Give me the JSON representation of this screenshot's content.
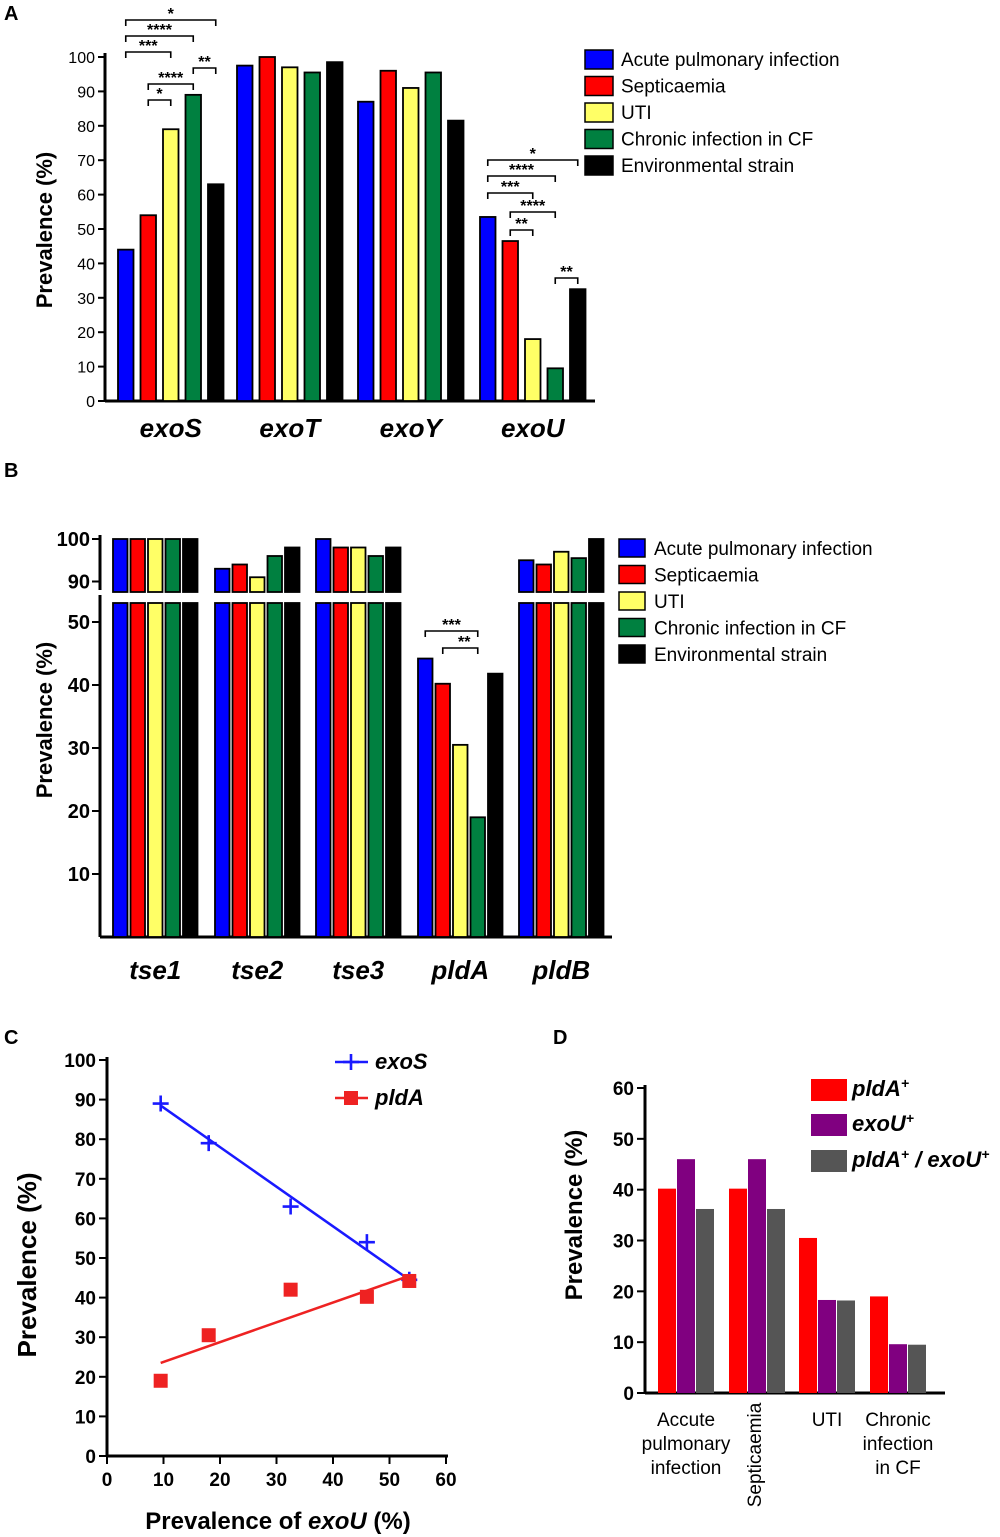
{
  "figure": {
    "panel_labels": [
      "A",
      "B",
      "C",
      "D"
    ],
    "colors": {
      "acute": "#0000ff",
      "septicaemia": "#ff0000",
      "uti": "#ffff66",
      "cf": "#008040",
      "environmental": "#000000",
      "exoS_line": "#1a1aff",
      "pldA_line": "#ee2222",
      "pldA_plus": "#ff0000",
      "exoU_plus": "#800080",
      "both": "#555555"
    }
  },
  "chart_data": [
    {
      "id": "A",
      "type": "bar",
      "title": "",
      "xlabel": "",
      "ylabel": "Prevalence (%)",
      "ylim": [
        0,
        100
      ],
      "yticks": [
        "0",
        "10",
        "20",
        "30",
        "40",
        "50",
        "60",
        "70",
        "80",
        "90",
        "100"
      ],
      "categories": [
        "exoS",
        "exoT",
        "exoY",
        "exoU"
      ],
      "series": [
        {
          "name": "Acute pulmonary infection",
          "values": [
            44,
            97.5,
            87,
            53.5
          ]
        },
        {
          "name": "Septicaemia",
          "values": [
            54,
            100,
            96,
            46.5
          ]
        },
        {
          "name": "UTI",
          "values": [
            79,
            97,
            91,
            18
          ]
        },
        {
          "name": "Chronic infection in CF",
          "values": [
            89,
            95.5,
            95.5,
            9.5
          ]
        },
        {
          "name": "Environmental strain",
          "values": [
            63,
            98.5,
            81.5,
            32.5
          ]
        }
      ],
      "significance": [
        {
          "category": "exoS",
          "from_series": 0,
          "to_series": 4,
          "label": "*"
        },
        {
          "category": "exoS",
          "from_series": 0,
          "to_series": 3,
          "label": "****"
        },
        {
          "category": "exoS",
          "from_series": 0,
          "to_series": 2,
          "label": "***"
        },
        {
          "category": "exoS",
          "from_series": 3,
          "to_series": 4,
          "label": "**"
        },
        {
          "category": "exoS",
          "from_series": 1,
          "to_series": 3,
          "label": "****"
        },
        {
          "category": "exoS",
          "from_series": 1,
          "to_series": 2,
          "label": "*"
        },
        {
          "category": "exoU",
          "from_series": 0,
          "to_series": 4,
          "label": "*"
        },
        {
          "category": "exoU",
          "from_series": 0,
          "to_series": 3,
          "label": "****"
        },
        {
          "category": "exoU",
          "from_series": 0,
          "to_series": 2,
          "label": "***"
        },
        {
          "category": "exoU",
          "from_series": 1,
          "to_series": 3,
          "label": "****"
        },
        {
          "category": "exoU",
          "from_series": 1,
          "to_series": 2,
          "label": "**"
        },
        {
          "category": "exoU",
          "from_series": 3,
          "to_series": 4,
          "label": "**"
        }
      ],
      "legend": [
        "Acute pulmonary infection",
        "Septicaemia",
        "UTI",
        "Chronic infection in CF",
        "Environmental strain"
      ]
    },
    {
      "id": "B",
      "type": "bar",
      "title": "",
      "xlabel": "",
      "ylabel": "Prevalence (%)",
      "ylim": [
        0,
        100
      ],
      "axis_break": [
        55,
        88
      ],
      "yticks": [
        "10",
        "20",
        "30",
        "40",
        "50",
        "90",
        "100"
      ],
      "categories": [
        "tse1",
        "tse2",
        "tse3",
        "pldA",
        "pldB"
      ],
      "series": [
        {
          "name": "Acute pulmonary infection",
          "values": [
            100,
            93,
            100,
            44.2,
            95
          ]
        },
        {
          "name": "Septicaemia",
          "values": [
            100,
            94,
            98,
            40.2,
            94
          ]
        },
        {
          "name": "UTI",
          "values": [
            100,
            91,
            98,
            30.5,
            97
          ]
        },
        {
          "name": "Chronic infection in CF",
          "values": [
            100,
            96,
            96,
            19,
            95.5
          ]
        },
        {
          "name": "Environmental strain",
          "values": [
            100,
            98,
            98,
            41.8,
            100
          ]
        }
      ],
      "significance": [
        {
          "category": "pldA",
          "from_series": 0,
          "to_series": 3,
          "label": "***"
        },
        {
          "category": "pldA",
          "from_series": 1,
          "to_series": 3,
          "label": "**"
        }
      ],
      "legend": [
        "Acute pulmonary infection",
        "Septicaemia",
        "UTI",
        "Chronic infection in CF",
        "Environmental strain"
      ]
    },
    {
      "id": "C",
      "type": "scatter",
      "title": "",
      "xlabel_prefix": "Prevalence of ",
      "xlabel_gene": "exoU",
      "xlabel_suffix": " (%)",
      "ylabel": "Prevalence (%)",
      "xlim": [
        0,
        60
      ],
      "ylim": [
        0,
        100
      ],
      "xticks": [
        "0",
        "10",
        "20",
        "30",
        "40",
        "50",
        "60"
      ],
      "yticks": [
        "0",
        "10",
        "20",
        "30",
        "40",
        "50",
        "60",
        "70",
        "80",
        "90",
        "100"
      ],
      "series": [
        {
          "name": "exoS",
          "marker": "plus",
          "points": [
            [
              9.5,
              89
            ],
            [
              18,
              79
            ],
            [
              32.5,
              63
            ],
            [
              46,
              54
            ],
            [
              53.5,
              44.5
            ]
          ],
          "fit": [
            [
              9.5,
              88.5
            ],
            [
              53.5,
              44.5
            ]
          ]
        },
        {
          "name": "pldA",
          "marker": "square",
          "points": [
            [
              9.5,
              19
            ],
            [
              18,
              30.5
            ],
            [
              32.5,
              42
            ],
            [
              46,
              40.2
            ],
            [
              53.5,
              44.2
            ]
          ],
          "fit": [
            [
              9.5,
              23.5
            ],
            [
              53.5,
              45.5
            ]
          ]
        }
      ],
      "legend": [
        "exoS",
        "pldA"
      ]
    },
    {
      "id": "D",
      "type": "bar",
      "title": "",
      "xlabel": "",
      "ylabel": "Prevalence (%)",
      "ylim": [
        0,
        60
      ],
      "yticks": [
        "0",
        "10",
        "20",
        "30",
        "40",
        "50",
        "60"
      ],
      "categories": [
        [
          "Accute",
          "pulmonary",
          "infection"
        ],
        [
          "Septicaemia"
        ],
        [
          "UTI"
        ],
        [
          "Chronic",
          "infection",
          "in CF"
        ]
      ],
      "series": [
        {
          "name": "pldA+",
          "values": [
            40.2,
            40.2,
            30.5,
            19
          ]
        },
        {
          "name": "exoU+",
          "values": [
            46,
            46,
            18.3,
            9.6
          ]
        },
        {
          "name": "pldA+ / exoU+",
          "values": [
            36.2,
            36.2,
            18.2,
            9.5
          ]
        }
      ],
      "legend": [
        {
          "gene": "pldA",
          "sup": "+"
        },
        {
          "gene": "exoU",
          "sup": "+"
        },
        {
          "gene": "pldA",
          "sup": "+",
          "sep": " / ",
          "gene2": "exoU",
          "sup2": "+"
        }
      ]
    }
  ]
}
